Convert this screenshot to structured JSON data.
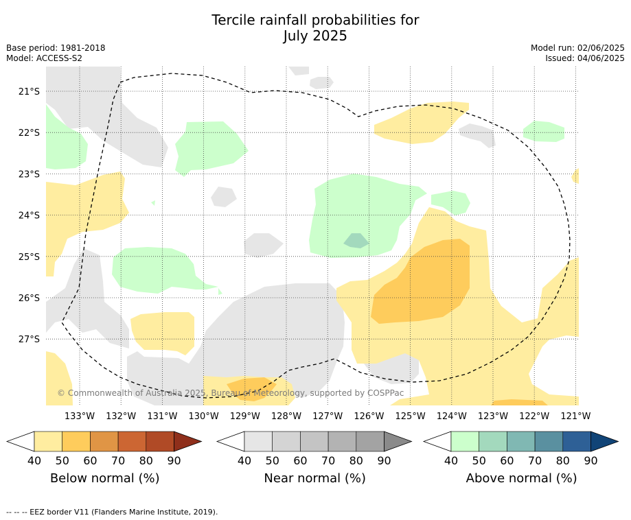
{
  "title": {
    "line1": "Tercile rainfall probabilities for",
    "line2": "July 2025"
  },
  "meta": {
    "base_period": "Base period: 1981-2018",
    "model": "Model: ACCESS-S2",
    "model_run": "Model run: 02/06/2025",
    "issued": "Issued: 04/06/2025"
  },
  "map": {
    "lat_labels": [
      "21°S",
      "22°S",
      "23°S",
      "24°S",
      "25°S",
      "26°S",
      "27°S"
    ],
    "lon_labels": [
      "133°W",
      "132°W",
      "131°W",
      "130°W",
      "129°W",
      "128°W",
      "127°W",
      "126°W",
      "125°W",
      "124°W",
      "123°W",
      "122°W",
      "121°W"
    ],
    "copyright": "© Commonwealth of Australia 2025, Bureau of Meteorology, supported by COSPPac",
    "gridlines": true
  },
  "colorbars": [
    {
      "title": "Below normal (%)",
      "ticks": [
        "40",
        "50",
        "60",
        "70",
        "80",
        "90"
      ],
      "colors": [
        "#ffeda0",
        "#fecc5c",
        "#e09545",
        "#cc6633",
        "#b04a26",
        "#8f2f1b"
      ]
    },
    {
      "title": "Near normal (%)",
      "ticks": [
        "40",
        "50",
        "60",
        "70",
        "80",
        "90"
      ],
      "colors": [
        "#e6e6e6",
        "#d4d4d4",
        "#c4c4c4",
        "#b3b3b3",
        "#a3a3a3",
        "#8a8a8a"
      ]
    },
    {
      "title": "Above normal (%)",
      "ticks": [
        "40",
        "50",
        "60",
        "70",
        "80",
        "90"
      ],
      "colors": [
        "#ccffcc",
        "#a3d9bd",
        "#80b8b3",
        "#5a90a0",
        "#2e6096",
        "#114477"
      ]
    }
  ],
  "footnote": "--  --  -- EEZ border V11 (Flanders Marine Institute, 2019)."
}
